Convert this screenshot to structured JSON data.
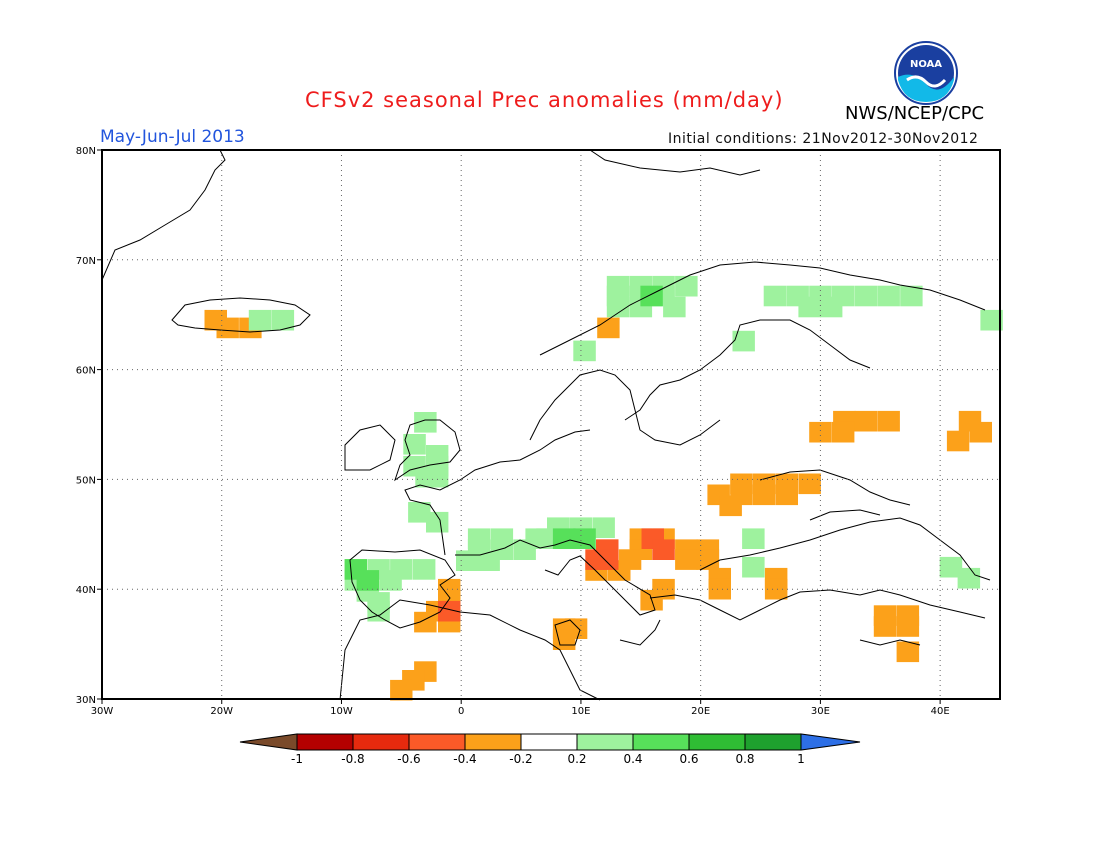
{
  "title": "CFSv2 seasonal Prec anomalies (mm/day)",
  "period": "May-Jun-Jul 2013",
  "initial_conditions": "Initial conditions: 21Nov2012-30Nov2012",
  "agency": "NWS/NCEP/CPC",
  "logo_text": "NOAA",
  "map": {
    "lon_range": [
      -30,
      45
    ],
    "lat_range": [
      30,
      80
    ],
    "x_ticks": [
      "30W",
      "20W",
      "10W",
      "0",
      "10E",
      "20E",
      "30E",
      "40E"
    ],
    "y_ticks": [
      "30N",
      "40N",
      "50N",
      "60N",
      "70N",
      "80N"
    ],
    "grid_lines": true
  },
  "colorbar": {
    "labels": [
      "-1",
      "-0.8",
      "-0.6",
      "-0.4",
      "-0.2",
      "0.2",
      "0.4",
      "0.6",
      "0.8",
      "1"
    ],
    "colors": [
      "#7a4a2a",
      "#b40000",
      "#e62a0e",
      "#fb5a28",
      "#fca11a",
      "#ffffff",
      "#9ef29e",
      "#57e05a",
      "#2fbd34",
      "#1ea12e",
      "#2d6fe6"
    ]
  },
  "anomaly_cells": {
    "cell_size_deg": 1.875,
    "neg_04": [
      [
        -20.5,
        64.5
      ],
      [
        -19.5,
        63.8
      ],
      [
        -17.6,
        63.8
      ],
      [
        12.3,
        63.8
      ],
      [
        32,
        55.3
      ],
      [
        33.8,
        55.3
      ],
      [
        35.7,
        55.3
      ],
      [
        30,
        54.3
      ],
      [
        31.9,
        54.3
      ],
      [
        43.4,
        54.3
      ],
      [
        42.5,
        55.3
      ],
      [
        41.5,
        53.5
      ],
      [
        23.4,
        49.6
      ],
      [
        25.3,
        49.6
      ],
      [
        27.2,
        49.6
      ],
      [
        29.1,
        49.6
      ],
      [
        21.5,
        48.6
      ],
      [
        23.4,
        48.6
      ],
      [
        25.3,
        48.6
      ],
      [
        27.2,
        48.6
      ],
      [
        22.5,
        47.6
      ],
      [
        15.0,
        44.6
      ],
      [
        16.9,
        44.6
      ],
      [
        15.0,
        43.6
      ],
      [
        18.8,
        43.6
      ],
      [
        20.6,
        43.6
      ],
      [
        12.2,
        43.6
      ],
      [
        14.1,
        42.7
      ],
      [
        18.8,
        42.7
      ],
      [
        20.6,
        42.7
      ],
      [
        11.3,
        41.7
      ],
      [
        13.2,
        41.7
      ],
      [
        21.6,
        41.0
      ],
      [
        21.6,
        40.0
      ],
      [
        26.3,
        41.0
      ],
      [
        26.3,
        40.0
      ],
      [
        16.9,
        40.0
      ],
      [
        15.9,
        39.0
      ],
      [
        -1.0,
        40.0
      ],
      [
        -1.0,
        39.0
      ],
      [
        -2.0,
        38.0
      ],
      [
        -3.0,
        37.0
      ],
      [
        -1.0,
        37.0
      ],
      [
        8.6,
        36.4
      ],
      [
        9.6,
        36.4
      ],
      [
        8.6,
        35.4
      ],
      [
        -3.0,
        32.5
      ],
      [
        -4.0,
        31.7
      ],
      [
        -5.0,
        30.8
      ],
      [
        37.3,
        37.6
      ],
      [
        35.4,
        37.6
      ],
      [
        37.3,
        36.6
      ],
      [
        35.4,
        36.6
      ],
      [
        37.3,
        34.3
      ]
    ],
    "neg_06": [
      [
        12.2,
        43.6
      ],
      [
        11.3,
        42.7
      ],
      [
        12.2,
        42.7
      ],
      [
        16.0,
        44.6
      ],
      [
        16.9,
        43.6
      ],
      [
        -1.0,
        38.0
      ]
    ],
    "pos_02": [
      [
        -16.8,
        64.5
      ],
      [
        -14.9,
        64.5
      ],
      [
        13.1,
        67.6
      ],
      [
        15.0,
        67.6
      ],
      [
        16.9,
        67.6
      ],
      [
        18.8,
        67.6
      ],
      [
        13.1,
        66.7
      ],
      [
        15.0,
        66.7
      ],
      [
        16.9,
        66.7
      ],
      [
        13.1,
        65.7
      ],
      [
        15.0,
        65.7
      ],
      [
        17.8,
        65.7
      ],
      [
        10.3,
        61.7
      ],
      [
        23.6,
        62.6
      ],
      [
        26.2,
        66.7
      ],
      [
        28.1,
        66.7
      ],
      [
        30,
        66.7
      ],
      [
        31.9,
        66.7
      ],
      [
        33.8,
        66.7
      ],
      [
        35.7,
        66.7
      ],
      [
        37.6,
        66.7
      ],
      [
        29.1,
        65.7
      ],
      [
        30.9,
        65.7
      ],
      [
        44.3,
        64.5
      ],
      [
        -3.0,
        55.2
      ],
      [
        -3.9,
        53.2
      ],
      [
        -2.0,
        52.2
      ],
      [
        -3.9,
        51.2
      ],
      [
        -2.0,
        51.2
      ],
      [
        -2.9,
        50.2
      ],
      [
        -2.0,
        50.2
      ],
      [
        -3.5,
        47.0
      ],
      [
        -2.0,
        46.1
      ],
      [
        1.5,
        44.6
      ],
      [
        3.4,
        44.6
      ],
      [
        1.5,
        43.6
      ],
      [
        3.4,
        43.6
      ],
      [
        0.5,
        42.6
      ],
      [
        2.3,
        42.6
      ],
      [
        5.3,
        43.6
      ],
      [
        7.2,
        44.6
      ],
      [
        8.1,
        45.6
      ],
      [
        10.0,
        45.6
      ],
      [
        11.9,
        45.6
      ],
      [
        6.3,
        44.6
      ],
      [
        24.4,
        44.6
      ],
      [
        24.4,
        42.0
      ],
      [
        40.9,
        42.0
      ],
      [
        42.4,
        41.0
      ],
      [
        -8.8,
        41.8
      ],
      [
        -6.9,
        41.8
      ],
      [
        -5.0,
        41.8
      ],
      [
        -3.1,
        41.8
      ],
      [
        -8.8,
        40.8
      ],
      [
        -5.9,
        40.8
      ],
      [
        -7.8,
        39.8
      ],
      [
        -6.9,
        38.8
      ],
      [
        -6.9,
        38.0
      ]
    ],
    "pos_04": [
      [
        15.9,
        66.7
      ],
      [
        10.3,
        44.6
      ],
      [
        8.6,
        44.6
      ],
      [
        -8.8,
        41.8
      ],
      [
        -7.8,
        40.8
      ]
    ]
  }
}
